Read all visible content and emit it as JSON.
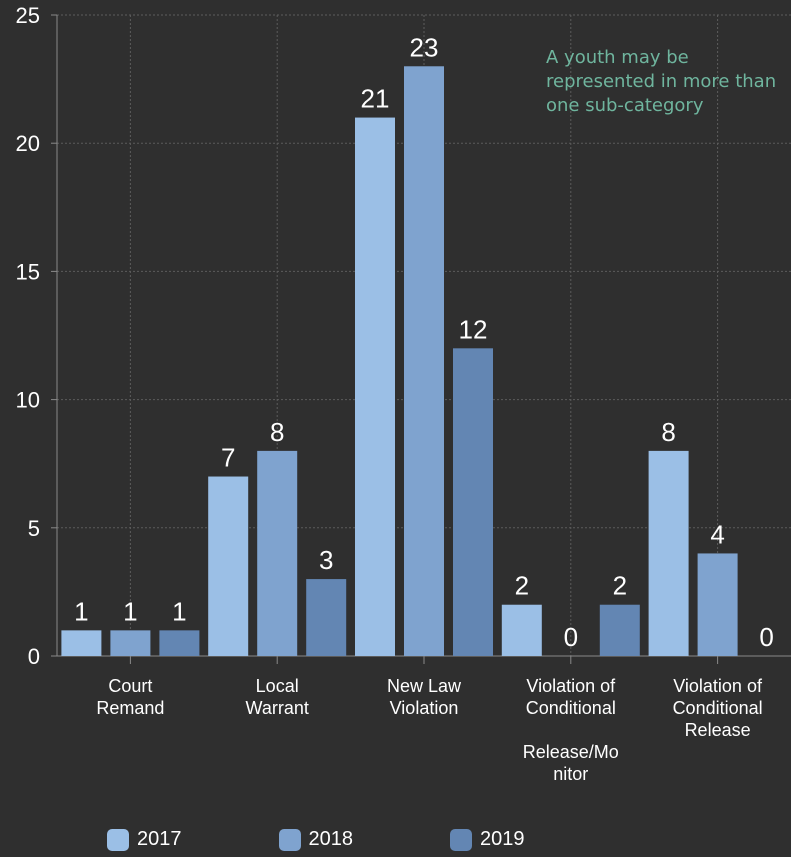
{
  "colors": {
    "background": "#2f2f2f",
    "grid": "#5c5c5c",
    "axis": "#8a8a8a",
    "text": "#ffffff",
    "note": "#6fb59e"
  },
  "note": "A youth may be represented in more than one sub-category",
  "chart_data": {
    "type": "bar",
    "title": "",
    "xlabel": "",
    "ylabel": "",
    "ylim": [
      0,
      25
    ],
    "yticks": [
      0,
      5,
      10,
      15,
      20,
      25
    ],
    "grid": true,
    "legend_position": "bottom",
    "categories": [
      [
        "Court",
        "Remand"
      ],
      [
        "Local",
        "Warrant"
      ],
      [
        "New Law",
        "Violation"
      ],
      [
        "Violation of",
        "Conditional",
        "",
        "Release/Mo",
        "nitor"
      ],
      [
        "Violation of",
        "Conditional",
        "Release"
      ]
    ],
    "series": [
      {
        "name": "2017",
        "color": "#9bbfe6",
        "values": [
          1,
          7,
          21,
          2,
          8
        ]
      },
      {
        "name": "2018",
        "color": "#7fa3cf",
        "values": [
          1,
          8,
          23,
          0,
          4
        ]
      },
      {
        "name": "2019",
        "color": "#6386b3",
        "values": [
          1,
          3,
          12,
          2,
          0
        ]
      }
    ]
  }
}
